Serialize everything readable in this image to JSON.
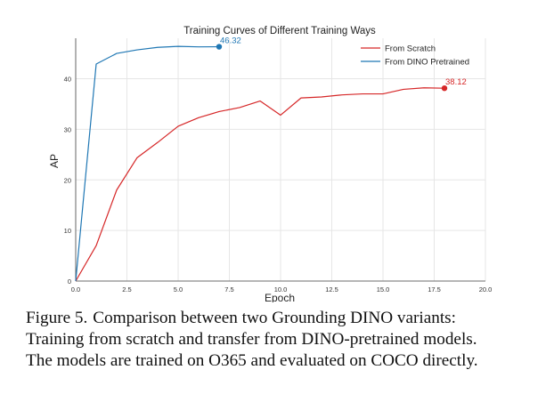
{
  "chart_data": {
    "type": "line",
    "title": "Training Curves of Different Training Ways",
    "xlabel": "Epoch",
    "ylabel": "AP",
    "xlim": [
      0,
      20
    ],
    "ylim": [
      0,
      48
    ],
    "x_ticks": [
      0.0,
      2.5,
      5.0,
      7.5,
      10.0,
      12.5,
      15.0,
      17.5,
      20.0
    ],
    "x_tick_labels": [
      "0.0",
      "2.5",
      "5.0",
      "7.5",
      "10.0",
      "12.5",
      "15.0",
      "17.5",
      "20.0"
    ],
    "y_ticks": [
      0,
      10,
      20,
      30,
      40
    ],
    "y_tick_labels": [
      "0",
      "10",
      "20",
      "30",
      "40"
    ],
    "grid": true,
    "legend_position": "top-right",
    "series": [
      {
        "name": "From Scratch",
        "color": "#d62728",
        "x": [
          0,
          1,
          2,
          3,
          4,
          5,
          6,
          7,
          8,
          9,
          10,
          11,
          12,
          13,
          14,
          15,
          16,
          17,
          18
        ],
        "values": [
          0,
          7.0,
          18.0,
          24.4,
          27.4,
          30.6,
          32.3,
          33.5,
          34.3,
          35.6,
          32.8,
          36.2,
          36.4,
          36.8,
          37.0,
          37.0,
          37.9,
          38.2,
          38.12
        ],
        "end_label": "38.12"
      },
      {
        "name": "From DINO Pretrained",
        "color": "#1f77b4",
        "x": [
          0,
          1,
          2,
          3,
          4,
          5,
          6,
          7
        ],
        "values": [
          0,
          42.9,
          45.0,
          45.7,
          46.2,
          46.4,
          46.3,
          46.32
        ],
        "end_label": "46.32"
      }
    ]
  },
  "caption": {
    "label": "Figure 5.",
    "lines": [
      "Comparison between two Grounding DINO variants:",
      "Training from scratch and transfer from DINO-pretrained models.",
      "The models are trained on O365 and evaluated on COCO directly."
    ]
  }
}
